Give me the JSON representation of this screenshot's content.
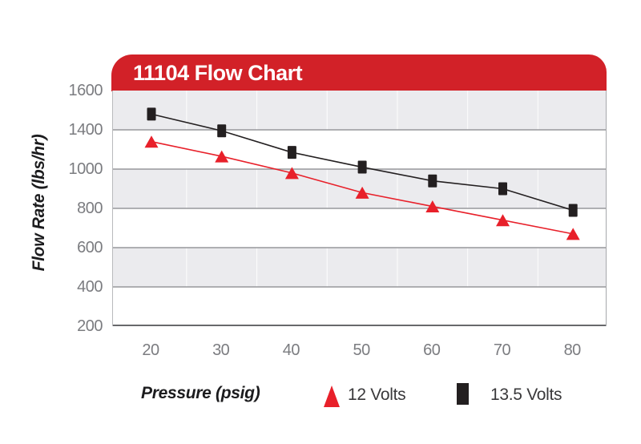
{
  "banner": {
    "title": "11104 Flow Chart",
    "background_color": "#d22128",
    "text_color": "#ffffff"
  },
  "chart_data": {
    "type": "line",
    "title": "11104 Flow Chart",
    "xlabel": "Pressure (psig)",
    "ylabel": "Flow Rate (lbs/hr)",
    "x": [
      20,
      30,
      40,
      50,
      60,
      70,
      80
    ],
    "x_tick_labels": [
      "20",
      "30",
      "40",
      "50",
      "60",
      "70",
      "80"
    ],
    "y_tick_labels": [
      "1600",
      "1400",
      "1000",
      "800",
      "600",
      "400",
      "200"
    ],
    "y_scale_note": "horizontal gridlines equally spaced and labeled exactly as printed on the chart (no 1200 gridline label); values interpolated between printed labels",
    "grid": "horizontal gridlines with alternating gray/white bands, faint vertical gridlines between ticks",
    "legend_position": "bottom",
    "series": [
      {
        "name": "12 Volts",
        "marker": "triangle",
        "color": "#e8202a",
        "values": [
          1280,
          1130,
          980,
          880,
          810,
          740,
          670
        ]
      },
      {
        "name": "13.5 Volts",
        "marker": "square",
        "color": "#231f20",
        "values": [
          1480,
          1390,
          1170,
          1020,
          940,
          900,
          790
        ]
      }
    ]
  },
  "style": {
    "band_gray": "#ebebee",
    "band_white": "#ffffff",
    "h_gridline_color": "#97989c",
    "v_gridline_color": "#ffffff",
    "axis_line_color": "#68696c",
    "tick_text_color": "#7b7c80"
  }
}
